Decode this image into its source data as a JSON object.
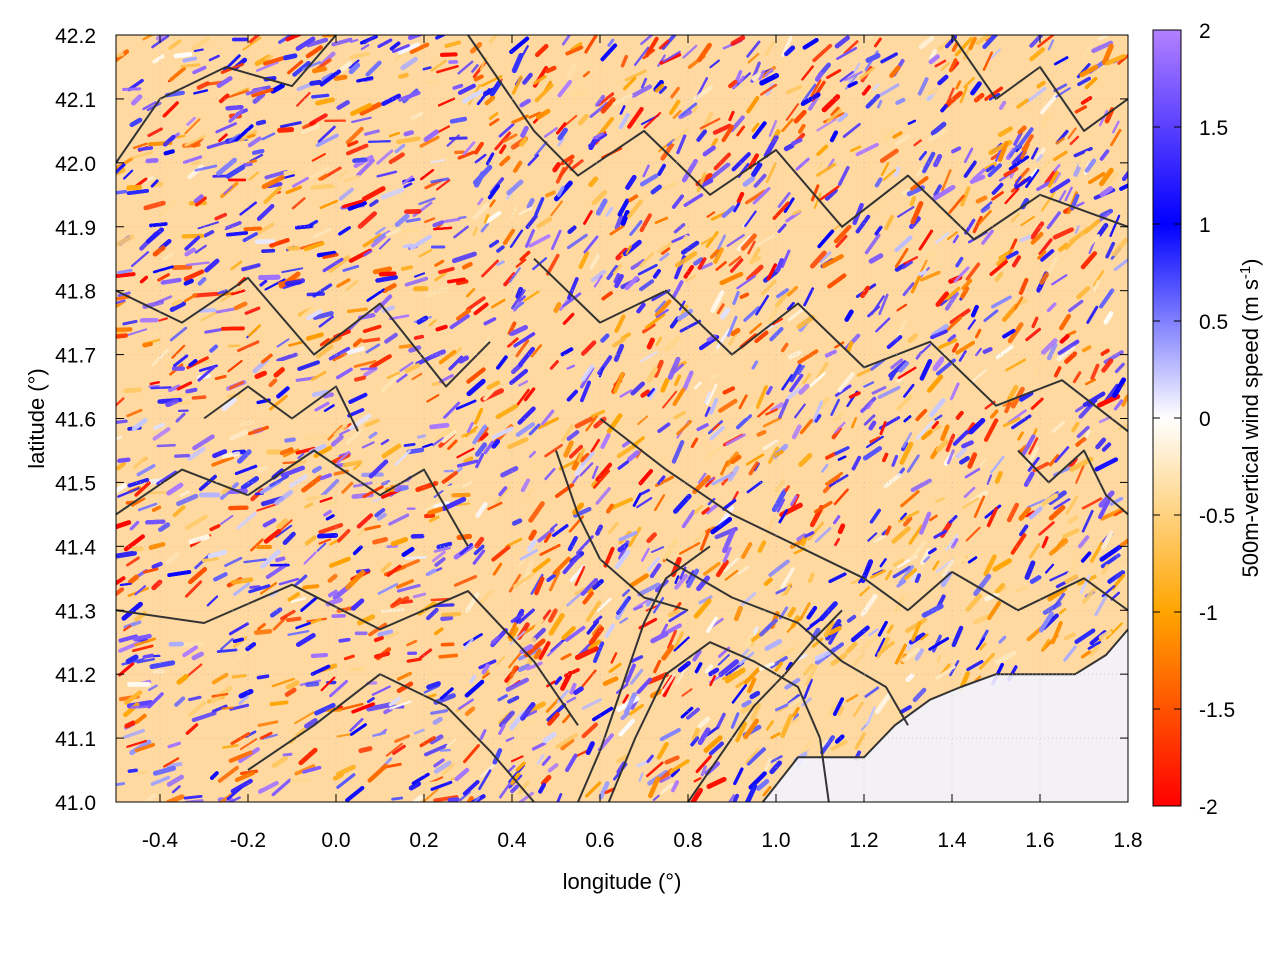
{
  "chart_data": {
    "type": "heatmap",
    "title": "",
    "xlabel": "longitude (°)",
    "ylabel": "latitude (°)",
    "colorbar_label_main": "500m-vertical wind speed (m s",
    "colorbar_label_sup": "-1",
    "colorbar_label_close": ")",
    "xlim": [
      -0.5,
      1.8
    ],
    "ylim": [
      41.0,
      42.2
    ],
    "x_ticks": [
      -0.4,
      -0.2,
      0.0,
      0.2,
      0.4,
      0.6,
      0.8,
      1.0,
      1.2,
      1.4,
      1.6,
      1.8
    ],
    "x_tick_labels": [
      "-0.4",
      "-0.2",
      "0.0",
      "0.2",
      "0.4",
      "0.6",
      "0.8",
      "1.0",
      "1.2",
      "1.4",
      "1.6",
      "1.8"
    ],
    "y_ticks": [
      41.0,
      41.1,
      41.2,
      41.3,
      41.4,
      41.5,
      41.6,
      41.7,
      41.8,
      41.9,
      42.0,
      42.1,
      42.2
    ],
    "y_tick_labels": [
      "41.0",
      "41.1",
      "41.2",
      "41.3",
      "41.4",
      "41.5",
      "41.6",
      "41.7",
      "41.8",
      "41.9",
      "42.0",
      "42.1",
      "42.2"
    ],
    "color_range": [
      -2,
      2
    ],
    "colorbar_ticks": [
      2,
      1.5,
      1,
      0.5,
      0,
      -0.5,
      -1,
      -1.5,
      -2
    ],
    "colorbar_tick_labels": [
      "2",
      "1.5",
      "1",
      "0.5",
      "0",
      "-0.5",
      "-1",
      "-1.5",
      "-2"
    ],
    "colormap": [
      {
        "value": -2.0,
        "color": "#ff0000"
      },
      {
        "value": -1.0,
        "color": "#ffa500"
      },
      {
        "value": 0.0,
        "color": "#ffffff"
      },
      {
        "value": 1.0,
        "color": "#0000ff"
      },
      {
        "value": 2.0,
        "color": "#b380ff"
      }
    ],
    "contour_color": "#333333",
    "grid": true,
    "coastline_approx": [
      [
        0.97,
        41.0
      ],
      [
        1.05,
        41.07
      ],
      [
        1.2,
        41.07
      ],
      [
        1.27,
        41.12
      ],
      [
        1.35,
        41.16
      ],
      [
        1.42,
        41.18
      ],
      [
        1.5,
        41.2
      ],
      [
        1.58,
        41.2
      ],
      [
        1.68,
        41.2
      ],
      [
        1.75,
        41.23
      ],
      [
        1.8,
        41.27
      ]
    ],
    "contour_lines_approx": [
      [
        [
          -0.5,
          42.0
        ],
        [
          -0.4,
          42.1
        ],
        [
          -0.25,
          42.15
        ],
        [
          -0.1,
          42.12
        ],
        [
          0.0,
          42.2
        ]
      ],
      [
        [
          -0.5,
          41.8
        ],
        [
          -0.35,
          41.75
        ],
        [
          -0.2,
          41.82
        ],
        [
          -0.05,
          41.7
        ],
        [
          0.1,
          41.78
        ],
        [
          0.25,
          41.65
        ],
        [
          0.35,
          41.72
        ]
      ],
      [
        [
          -0.5,
          41.45
        ],
        [
          -0.35,
          41.52
        ],
        [
          -0.2,
          41.48
        ],
        [
          -0.05,
          41.55
        ],
        [
          0.1,
          41.48
        ],
        [
          0.2,
          41.52
        ],
        [
          0.3,
          41.4
        ]
      ],
      [
        [
          -0.5,
          41.3
        ],
        [
          -0.3,
          41.28
        ],
        [
          -0.1,
          41.34
        ],
        [
          0.1,
          41.27
        ],
        [
          0.3,
          41.33
        ],
        [
          0.45,
          41.22
        ],
        [
          0.55,
          41.12
        ]
      ],
      [
        [
          -0.2,
          41.05
        ],
        [
          -0.05,
          41.12
        ],
        [
          0.1,
          41.2
        ],
        [
          0.25,
          41.15
        ],
        [
          0.35,
          41.08
        ],
        [
          0.45,
          41.0
        ]
      ],
      [
        [
          0.3,
          42.2
        ],
        [
          0.45,
          42.05
        ],
        [
          0.55,
          41.98
        ],
        [
          0.7,
          42.05
        ],
        [
          0.85,
          41.95
        ],
        [
          1.0,
          42.02
        ],
        [
          1.15,
          41.9
        ],
        [
          1.3,
          41.98
        ],
        [
          1.45,
          41.88
        ],
        [
          1.6,
          41.95
        ],
        [
          1.8,
          41.9
        ]
      ],
      [
        [
          0.45,
          41.85
        ],
        [
          0.6,
          41.75
        ],
        [
          0.75,
          41.8
        ],
        [
          0.9,
          41.7
        ],
        [
          1.05,
          41.78
        ],
        [
          1.2,
          41.68
        ],
        [
          1.35,
          41.72
        ],
        [
          1.5,
          41.62
        ],
        [
          1.65,
          41.66
        ],
        [
          1.8,
          41.58
        ]
      ],
      [
        [
          0.6,
          41.6
        ],
        [
          0.75,
          41.52
        ],
        [
          0.9,
          41.45
        ],
        [
          1.05,
          41.4
        ],
        [
          1.2,
          41.35
        ],
        [
          1.3,
          41.3
        ],
        [
          1.4,
          41.36
        ],
        [
          1.55,
          41.3
        ],
        [
          1.7,
          41.35
        ],
        [
          1.8,
          41.3
        ]
      ],
      [
        [
          0.75,
          41.38
        ],
        [
          0.9,
          41.32
        ],
        [
          1.05,
          41.28
        ],
        [
          1.15,
          41.22
        ],
        [
          1.25,
          41.18
        ],
        [
          1.3,
          41.12
        ]
      ],
      [
        [
          0.62,
          41.0
        ],
        [
          0.68,
          41.1
        ],
        [
          0.75,
          41.2
        ],
        [
          0.85,
          41.25
        ],
        [
          0.95,
          41.22
        ],
        [
          1.05,
          41.18
        ],
        [
          1.1,
          41.1
        ],
        [
          1.12,
          41.0
        ]
      ],
      [
        [
          0.8,
          41.0
        ],
        [
          0.88,
          41.08
        ],
        [
          0.95,
          41.15
        ],
        [
          1.02,
          41.2
        ],
        [
          1.08,
          41.25
        ],
        [
          1.15,
          41.3
        ]
      ],
      [
        [
          0.55,
          41.0
        ],
        [
          0.6,
          41.08
        ],
        [
          0.65,
          41.18
        ],
        [
          0.7,
          41.28
        ],
        [
          0.75,
          41.35
        ],
        [
          0.85,
          41.4
        ]
      ],
      [
        [
          0.5,
          41.55
        ],
        [
          0.55,
          41.45
        ],
        [
          0.6,
          41.38
        ],
        [
          0.7,
          41.32
        ],
        [
          0.8,
          41.3
        ]
      ],
      [
        [
          1.4,
          42.2
        ],
        [
          1.5,
          42.1
        ],
        [
          1.6,
          42.15
        ],
        [
          1.7,
          42.05
        ],
        [
          1.8,
          42.1
        ]
      ],
      [
        [
          -0.3,
          41.6
        ],
        [
          -0.2,
          41.65
        ],
        [
          -0.1,
          41.6
        ],
        [
          0.0,
          41.65
        ],
        [
          0.05,
          41.58
        ]
      ],
      [
        [
          1.55,
          41.55
        ],
        [
          1.62,
          41.5
        ],
        [
          1.7,
          41.55
        ],
        [
          1.75,
          41.48
        ],
        [
          1.8,
          41.45
        ]
      ]
    ]
  }
}
